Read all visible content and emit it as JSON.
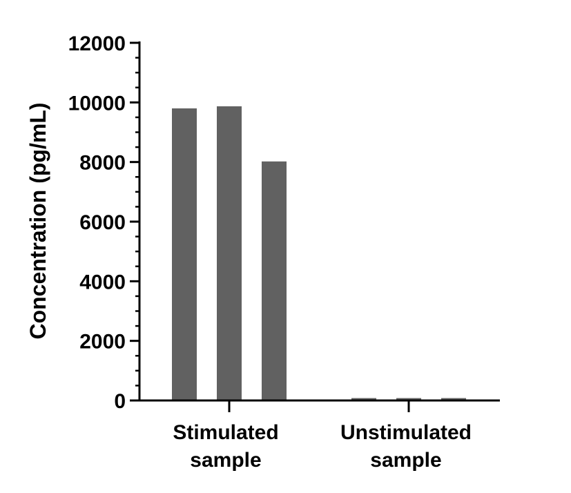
{
  "chart_data": {
    "type": "bar",
    "ylabel": "Concentration (pg/mL)",
    "xlabel": "",
    "ylim": [
      0,
      12000
    ],
    "y_ticks": [
      "0",
      "2000",
      "4000",
      "6000",
      "8000",
      "10000",
      "12000"
    ],
    "bar_color": "#616161",
    "grid": false,
    "legend": "none",
    "groups": [
      {
        "label_lines": [
          "Stimulated",
          "sample"
        ],
        "values": [
          9800,
          9870,
          8020
        ]
      },
      {
        "label_lines": [
          "Unstimulated",
          "sample"
        ],
        "values": [
          80,
          80,
          80
        ]
      }
    ]
  }
}
